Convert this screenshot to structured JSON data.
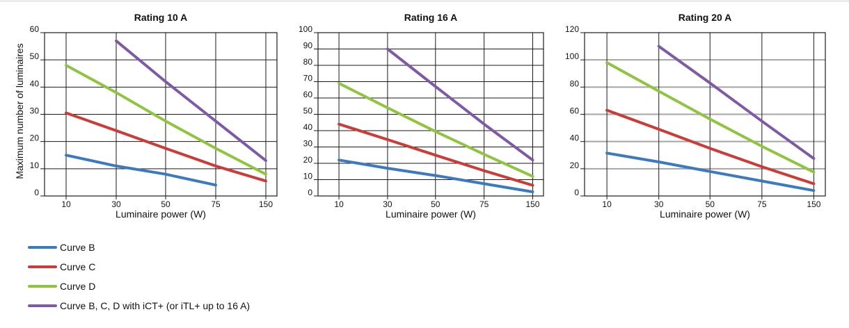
{
  "y_axis_label": "Maximum number of luminaires",
  "colors": {
    "curve_b": "#3b7abf",
    "curve_c": "#cc3b36",
    "curve_d": "#8fc43f",
    "curve_ict": "#7e5aa6",
    "grid_black": "#1a1a1a",
    "grid_gray": "#a5a5a5"
  },
  "legend": [
    {
      "key": "curve_b",
      "label": "Curve B",
      "color": "#3b7abf"
    },
    {
      "key": "curve_c",
      "label": "Curve C",
      "color": "#cc3b36"
    },
    {
      "key": "curve_d",
      "label": "Curve D",
      "color": "#8fc43f"
    },
    {
      "key": "curve_ict",
      "label": "Curve B, C, D with iCT+ (or iTL+ up to 16 A)",
      "color": "#7e5aa6"
    }
  ],
  "chart_data": [
    {
      "type": "line",
      "title": "Rating 10 A",
      "xlabel": "Luminaire power (W)",
      "ylabel": "Maximum number of luminaires",
      "categories": [
        "10",
        "30",
        "50",
        "75",
        "150"
      ],
      "ylim": [
        0,
        60
      ],
      "yticks": [
        0,
        10,
        20,
        30,
        40,
        50,
        60
      ],
      "grid": true,
      "grid_style": "black",
      "series": [
        {
          "name": "Curve B",
          "color": "#3b7abf",
          "x": [
            "10",
            "30",
            "50",
            "75"
          ],
          "values": [
            15,
            11,
            8,
            4
          ]
        },
        {
          "name": "Curve C",
          "color": "#cc3b36",
          "x": [
            "10",
            "30",
            "50",
            "75",
            "150"
          ],
          "values": [
            30.5,
            24,
            17.5,
            11,
            5.5
          ]
        },
        {
          "name": "Curve D",
          "color": "#8fc43f",
          "x": [
            "10",
            "30",
            "50",
            "75",
            "150"
          ],
          "values": [
            48,
            38,
            27.5,
            17.5,
            8
          ]
        },
        {
          "name": "Curve B, C, D with iCT+ (or iTL+ up to 16 A)",
          "color": "#7e5aa6",
          "x": [
            "30",
            "50",
            "75",
            "150"
          ],
          "values": [
            57,
            42,
            27.5,
            13
          ]
        }
      ]
    },
    {
      "type": "line",
      "title": "Rating 16 A",
      "xlabel": "Luminaire power (W)",
      "ylabel": "",
      "categories": [
        "10",
        "30",
        "50",
        "75",
        "150"
      ],
      "ylim": [
        0,
        100
      ],
      "yticks": [
        0,
        10,
        20,
        30,
        40,
        50,
        60,
        70,
        80,
        90,
        100
      ],
      "grid": true,
      "grid_style": "black",
      "series": [
        {
          "name": "Curve B",
          "color": "#3b7abf",
          "x": [
            "10",
            "30",
            "50",
            "75",
            "150"
          ],
          "values": [
            22,
            17,
            12.5,
            7.5,
            2.5
          ]
        },
        {
          "name": "Curve C",
          "color": "#cc3b36",
          "x": [
            "10",
            "30",
            "50",
            "75",
            "150"
          ],
          "values": [
            44,
            34.5,
            25,
            15.5,
            6.5
          ]
        },
        {
          "name": "Curve D",
          "color": "#8fc43f",
          "x": [
            "10",
            "30",
            "50",
            "75",
            "150"
          ],
          "values": [
            69,
            54,
            39.5,
            25.5,
            12
          ]
        },
        {
          "name": "Curve B, C, D with iCT+ (or iTL+ up to 16 A)",
          "color": "#7e5aa6",
          "x": [
            "30",
            "50",
            "75",
            "150"
          ],
          "values": [
            90,
            67,
            44,
            22
          ]
        }
      ]
    },
    {
      "type": "line",
      "title": "Rating 20 A",
      "xlabel": "Luminaire power (W)",
      "ylabel": "",
      "categories": [
        "10",
        "30",
        "50",
        "75",
        "150"
      ],
      "ylim": [
        0,
        120
      ],
      "yticks": [
        0,
        20,
        40,
        60,
        80,
        100,
        120
      ],
      "grid": true,
      "grid_style": "gray",
      "series": [
        {
          "name": "Curve B",
          "color": "#3b7abf",
          "x": [
            "10",
            "30",
            "50",
            "75",
            "150"
          ],
          "values": [
            31.5,
            25,
            18,
            11,
            4
          ]
        },
        {
          "name": "Curve C",
          "color": "#cc3b36",
          "x": [
            "10",
            "30",
            "50",
            "75",
            "150"
          ],
          "values": [
            63,
            49,
            35,
            21.5,
            9
          ]
        },
        {
          "name": "Curve D",
          "color": "#8fc43f",
          "x": [
            "10",
            "30",
            "50",
            "75",
            "150"
          ],
          "values": [
            98,
            77,
            56.5,
            36.5,
            17.5
          ]
        },
        {
          "name": "Curve B, C, D with iCT+ (or iTL+ up to 16 A)",
          "color": "#7e5aa6",
          "x": [
            "30",
            "50",
            "75",
            "150"
          ],
          "values": [
            110,
            83,
            55,
            27.5
          ]
        }
      ]
    }
  ]
}
